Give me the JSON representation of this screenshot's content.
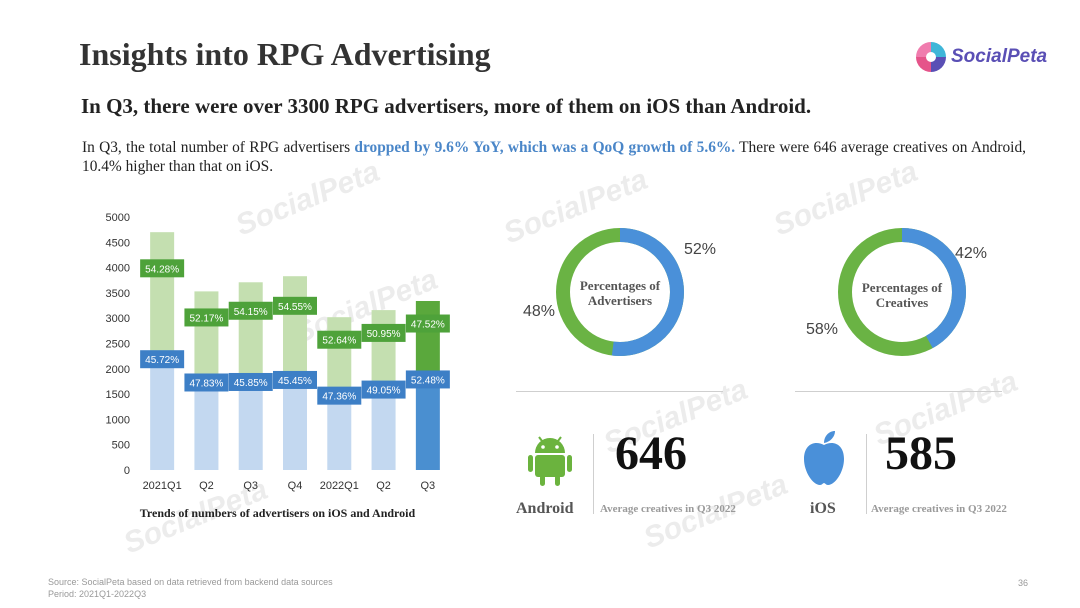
{
  "title": "Insights into RPG Advertising",
  "logo_text": "SocialPeta",
  "subtitle": "In Q3, there were over 3300 RPG advertisers, more of them on iOS than Android.",
  "paragraph": {
    "part1": "In Q3, the total number of RPG advertisers ",
    "highlight": "dropped by 9.6% YoY, which was a QoQ growth of 5.6%.",
    "part2": " There were 646 average creatives on Android, 10.4% higher than that on iOS."
  },
  "watermark": "SocialPeta",
  "chart_data": {
    "type": "bar",
    "title": "Trends of numbers of advertisers on iOS and Android",
    "categories": [
      "2021Q1",
      "Q2",
      "Q3",
      "Q4",
      "2022Q1",
      "Q2",
      "Q3"
    ],
    "ylim": [
      0,
      5000
    ],
    "yticks": [
      0,
      500,
      1000,
      1500,
      2000,
      2500,
      3000,
      3500,
      4000,
      4500,
      5000
    ],
    "series": [
      {
        "key": "ios",
        "values": [
          2150,
          1690,
          1700,
          1740,
          1430,
          1550,
          1750
        ],
        "labels": [
          "45.72%",
          "47.83%",
          "45.85%",
          "45.45%",
          "47.36%",
          "49.05%",
          "52.48%"
        ]
      },
      {
        "key": "android",
        "values": [
          2550,
          1840,
          2010,
          2090,
          1590,
          1610,
          1590
        ],
        "labels": [
          "54.28%",
          "52.17%",
          "54.15%",
          "54.55%",
          "52.64%",
          "50.95%",
          "47.52%"
        ]
      }
    ],
    "colors": {
      "ios_light": "#c3d8f0",
      "ios_dark": "#4a8fd0",
      "android_light": "#c4dfb0",
      "android_dark": "#5aa83c",
      "ios_label": "#3d7fc6",
      "android_label": "#4ea23a"
    }
  },
  "donuts": [
    {
      "label_line1": "Percentages of",
      "label_line2": "Advertisers",
      "ios_pct": 52,
      "android_pct": 48,
      "ios_text": "52%",
      "android_text": "48%"
    },
    {
      "label_line1": "Percentages of",
      "label_line2": "Creatives",
      "ios_pct": 42,
      "android_pct": 58,
      "ios_text": "42%",
      "android_text": "58%"
    }
  ],
  "android_stat": {
    "platform": "Android",
    "value": "646",
    "caption": "Average creatives in Q3 2022"
  },
  "ios_stat": {
    "platform": "iOS",
    "value": "585",
    "caption": "Average creatives in Q3 2022"
  },
  "footer": {
    "line1": "Source: SocialPeta based on data retrieved from backend data sources",
    "line2": "Period: 2021Q1-2022Q3"
  },
  "page_number": "36"
}
